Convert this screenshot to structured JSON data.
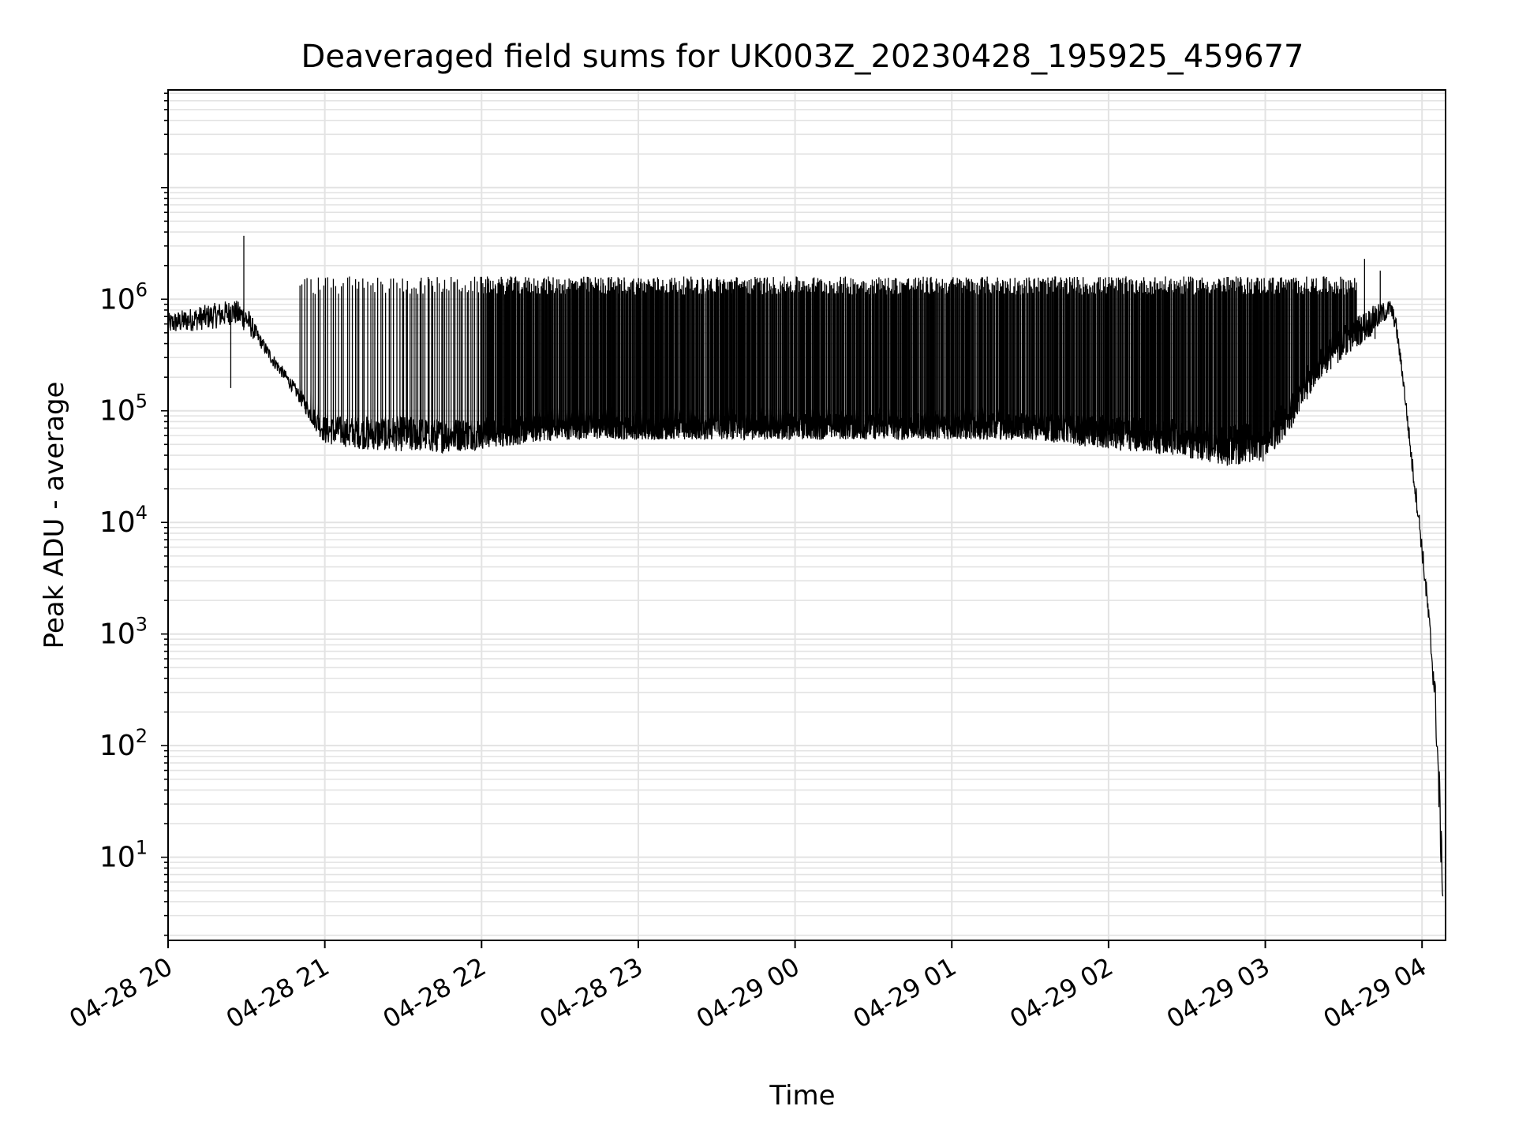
{
  "chart_data": {
    "type": "line",
    "title": "Deaveraged field sums for UK003Z_20230428_195925_459677",
    "xlabel": "Time",
    "ylabel": "Peak ADU - average",
    "yscale": "log",
    "grid": true,
    "grid_minor": true,
    "line_color": "#000000",
    "x_ticks": [
      {
        "t": "2023-04-28T20:00",
        "label": "04-28 20"
      },
      {
        "t": "2023-04-28T21:00",
        "label": "04-28 21"
      },
      {
        "t": "2023-04-28T22:00",
        "label": "04-28 22"
      },
      {
        "t": "2023-04-28T23:00",
        "label": "04-28 23"
      },
      {
        "t": "2023-04-29T00:00",
        "label": "04-29 00"
      },
      {
        "t": "2023-04-29T01:00",
        "label": "04-29 01"
      },
      {
        "t": "2023-04-29T02:00",
        "label": "04-29 02"
      },
      {
        "t": "2023-04-29T03:00",
        "label": "04-29 03"
      },
      {
        "t": "2023-04-29T04:00",
        "label": "04-29 04"
      }
    ],
    "xlim": [
      "2023-04-28T20:00",
      "2023-04-29T04:09"
    ],
    "ylim": [
      1.8,
      75000000
    ],
    "y_ticks": [
      {
        "value": 10,
        "base": "10",
        "exp": "1"
      },
      {
        "value": 100,
        "base": "10",
        "exp": "2"
      },
      {
        "value": 1000,
        "base": "10",
        "exp": "3"
      },
      {
        "value": 10000,
        "base": "10",
        "exp": "4"
      },
      {
        "value": 100000,
        "base": "10",
        "exp": "5"
      },
      {
        "value": 1000000,
        "base": "10",
        "exp": "6"
      }
    ],
    "series": [
      {
        "values_format": "[time, lower envelope, upper envelope]",
        "envelope": [
          [
            "2023-04-28T20:00",
            480000,
            750000
          ],
          [
            "2023-04-28T20:10",
            520000,
            850000
          ],
          [
            "2023-04-28T20:20",
            550000,
            950000
          ],
          [
            "2023-04-28T20:25",
            600000,
            1000000
          ],
          [
            "2023-04-28T20:30",
            500000,
            900000
          ],
          [
            "2023-04-28T20:35",
            380000,
            500000
          ],
          [
            "2023-04-28T20:40",
            250000,
            330000
          ],
          [
            "2023-04-28T20:45",
            180000,
            230000
          ],
          [
            "2023-04-28T20:50",
            120000,
            160000
          ],
          [
            "2023-04-28T20:55",
            75000,
            110000
          ],
          [
            "2023-04-28T21:00",
            50000,
            90000
          ],
          [
            "2023-04-28T21:15",
            45000,
            90000
          ],
          [
            "2023-04-28T21:30",
            43000,
            90000
          ],
          [
            "2023-04-28T21:45",
            42000,
            85000
          ],
          [
            "2023-04-28T22:00",
            45000,
            90000
          ],
          [
            "2023-04-28T22:30",
            55000,
            90000
          ],
          [
            "2023-04-28T23:00",
            55000,
            90000
          ],
          [
            "2023-04-29T00:00",
            55000,
            95000
          ],
          [
            "2023-04-29T01:00",
            55000,
            95000
          ],
          [
            "2023-04-29T01:30",
            55000,
            95000
          ],
          [
            "2023-04-29T02:00",
            45000,
            90000
          ],
          [
            "2023-04-29T02:30",
            38000,
            85000
          ],
          [
            "2023-04-29T02:45",
            32000,
            75000
          ],
          [
            "2023-04-29T03:00",
            35000,
            80000
          ],
          [
            "2023-04-29T03:10",
            70000,
            150000
          ],
          [
            "2023-04-29T03:20",
            180000,
            350000
          ],
          [
            "2023-04-29T03:30",
            300000,
            600000
          ],
          [
            "2023-04-29T03:40",
            450000,
            850000
          ],
          [
            "2023-04-29T03:48",
            700000,
            1000000
          ],
          [
            "2023-04-29T03:50",
            500000,
            700000
          ],
          [
            "2023-04-29T03:53",
            150000,
            200000
          ],
          [
            "2023-04-29T03:56",
            30000,
            45000
          ],
          [
            "2023-04-29T03:59",
            8000,
            12000
          ],
          [
            "2023-04-29T04:02",
            1500,
            2500
          ],
          [
            "2023-04-29T04:05",
            200,
            400
          ],
          [
            "2023-04-29T04:07",
            10,
            40
          ],
          [
            "2023-04-29T04:08",
            3.8,
            5
          ]
        ],
        "spike_peak": 1300000,
        "spike_peak_range": [
          1100000,
          1600000
        ],
        "spike_bands": [
          {
            "from": "2023-04-28T20:50",
            "to": "2023-04-28T21:30",
            "spikes_per_hour": 60
          },
          {
            "from": "2023-04-28T21:30",
            "to": "2023-04-28T22:00",
            "spikes_per_hour": 80
          },
          {
            "from": "2023-04-28T22:00",
            "to": "2023-04-29T03:35",
            "spikes_per_hour": 180
          }
        ],
        "notable_points": [
          {
            "t": "2023-04-28T20:29",
            "value": 3700000
          },
          {
            "t": "2023-04-28T20:24",
            "value": 160000
          },
          {
            "t": "2023-04-29T03:38",
            "value": 2300000
          },
          {
            "t": "2023-04-29T03:44",
            "value": 1800000
          },
          {
            "t": "2023-04-29T03:42",
            "value": 440000
          }
        ]
      }
    ]
  }
}
